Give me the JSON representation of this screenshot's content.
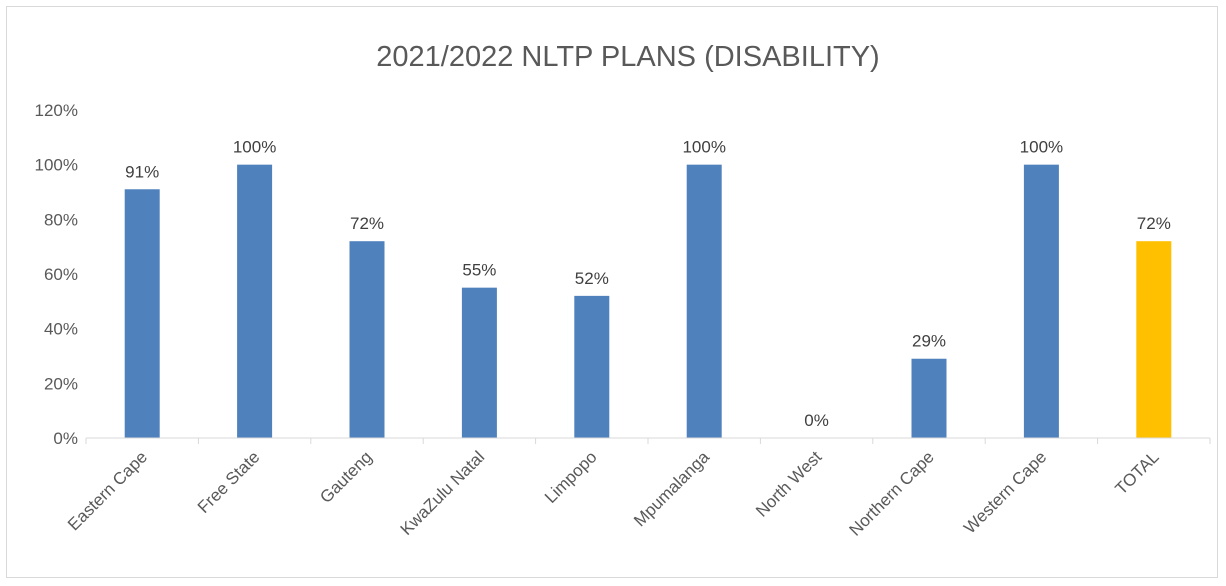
{
  "chart_data": {
    "type": "bar",
    "title": "2021/2022 NLTP PLANS (DISABILITY)",
    "xlabel": "",
    "ylabel": "",
    "categories": [
      "Eastern Cape",
      "Free State",
      "Gauteng",
      "KwaZulu Natal",
      "Limpopo",
      "Mpumalanga",
      "North West",
      "Northern Cape",
      "Western Cape",
      "TOTAL"
    ],
    "values": [
      91,
      100,
      72,
      55,
      52,
      100,
      0,
      29,
      100,
      72
    ],
    "data_labels": [
      "91%",
      "100%",
      "72%",
      "55%",
      "52%",
      "100%",
      "0%",
      "29%",
      "100%",
      "72%"
    ],
    "ylim": [
      0,
      120
    ],
    "yticks": [
      0,
      20,
      40,
      60,
      80,
      100,
      120
    ],
    "ytick_labels": [
      "0%",
      "20%",
      "40%",
      "60%",
      "80%",
      "100%",
      "120%"
    ],
    "grid": false,
    "legend": "none",
    "colors": {
      "bar": "#4f81bd",
      "highlight": "#ffc000",
      "axis": "#d9d9d9",
      "text": "#595959"
    },
    "highlight_category": "TOTAL"
  }
}
